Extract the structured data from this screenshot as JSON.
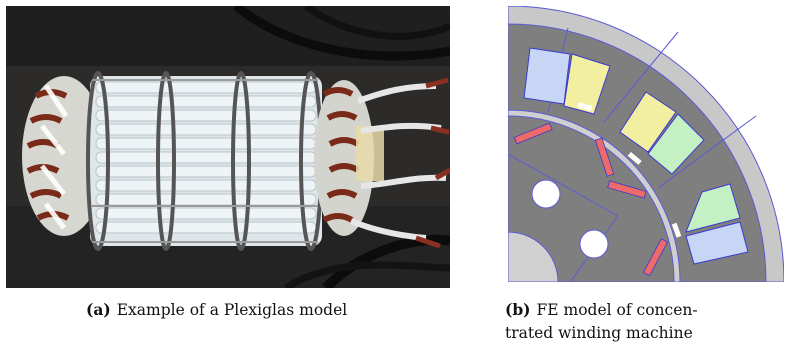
{
  "figure_a": {
    "caption_label": "(a)",
    "caption_text": "Example of a Plexiglas model"
  },
  "figure_b": {
    "caption_label": "(b)",
    "caption_line1": "FE model of concen-",
    "caption_line2": "trated winding machine"
  },
  "colors": {
    "photo_background": "#2b2b2b",
    "tube_white": "#e9eef0",
    "copper_coil": "#7a2a18",
    "fe_stator_grey": "#7f7f7f",
    "fe_airgap_grey": "#c9c9c9",
    "coil_blue": "#c6d6f4",
    "coil_yellow": "#f2f0a0",
    "coil_green": "#c4f0c4",
    "magnet_red": "#ec6a6a",
    "outline_blue": "#3a3ad0"
  }
}
